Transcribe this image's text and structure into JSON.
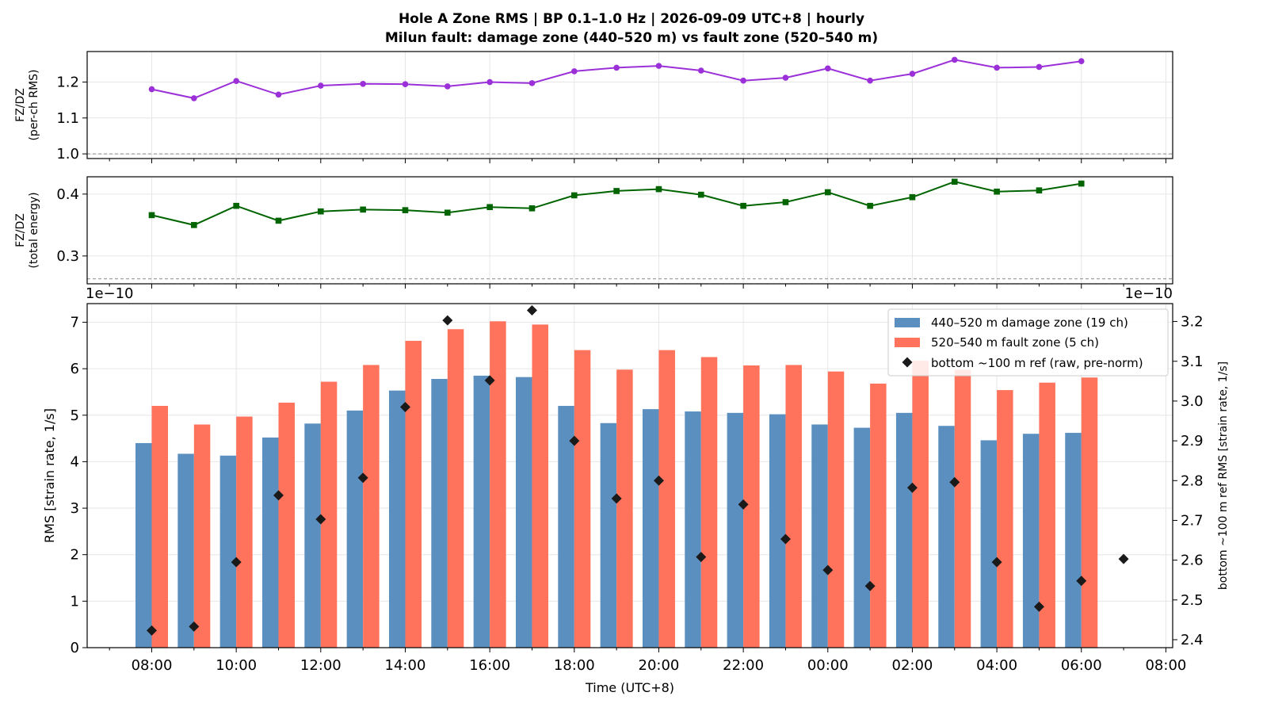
{
  "title_line1": "Hole A Zone RMS  |  BP 0.1–1.0 Hz  |  2026-09-09 UTC+8  |  hourly",
  "title_line2": "Milun fault: damage zone (440–520 m) vs fault zone (520–540 m)",
  "colors": {
    "ratio_rms": "#9b30d9",
    "ratio_energy": "#006400",
    "damage_zone": "#5b8fc0",
    "fault_zone": "#ff735c",
    "ref": "#1a1a1a",
    "grid": "#e6e6e6"
  },
  "x_tick_labels": [
    "08:00",
    "10:00",
    "12:00",
    "14:00",
    "16:00",
    "18:00",
    "20:00",
    "22:00",
    "00:00",
    "02:00",
    "04:00",
    "06:00",
    "08:00"
  ],
  "xlabel": "Time (UTC+8)",
  "chart_data": [
    {
      "type": "line",
      "ylabel": [
        "FZ/DZ",
        "(per-ch RMS)"
      ],
      "ylim": [
        0.987,
        1.285
      ],
      "yticks": [
        "1.0",
        "1.1",
        "1.2"
      ],
      "reference_line": 1.0,
      "grid": true,
      "x": [
        "08:00",
        "09:00",
        "10:00",
        "11:00",
        "12:00",
        "13:00",
        "14:00",
        "15:00",
        "16:00",
        "17:00",
        "18:00",
        "19:00",
        "20:00",
        "21:00",
        "22:00",
        "23:00",
        "00:00",
        "01:00",
        "02:00",
        "03:00",
        "04:00",
        "05:00",
        "06:00"
      ],
      "series": [
        {
          "values": [
            1.18,
            1.155,
            1.203,
            1.165,
            1.19,
            1.195,
            1.194,
            1.188,
            1.2,
            1.197,
            1.23,
            1.24,
            1.245,
            1.232,
            1.204,
            1.212,
            1.238,
            1.204,
            1.223,
            1.262,
            1.24,
            1.242,
            1.258
          ]
        }
      ]
    },
    {
      "type": "line",
      "ylabel": [
        "FZ/DZ",
        "(total energy)"
      ],
      "ylim": [
        0.255,
        0.428
      ],
      "yticks": [
        "0.3",
        "0.4"
      ],
      "reference_line": 0.263,
      "grid": true,
      "x": [
        "08:00",
        "09:00",
        "10:00",
        "11:00",
        "12:00",
        "13:00",
        "14:00",
        "15:00",
        "16:00",
        "17:00",
        "18:00",
        "19:00",
        "20:00",
        "21:00",
        "22:00",
        "23:00",
        "00:00",
        "01:00",
        "02:00",
        "03:00",
        "04:00",
        "05:00",
        "06:00"
      ],
      "series": [
        {
          "values": [
            0.366,
            0.35,
            0.381,
            0.357,
            0.372,
            0.375,
            0.374,
            0.37,
            0.379,
            0.377,
            0.398,
            0.405,
            0.408,
            0.399,
            0.381,
            0.387,
            0.403,
            0.381,
            0.395,
            0.42,
            0.404,
            0.406,
            0.417
          ]
        }
      ]
    },
    {
      "type": "bar",
      "ylabel": "RMS  [strain rate, 1/s]",
      "y_offset_label": "1e−10",
      "ylim": [
        0,
        7.4
      ],
      "yticks": [
        "0",
        "1",
        "2",
        "3",
        "4",
        "5",
        "6",
        "7"
      ],
      "y2label": "bottom ~100 m ref RMS  [strain rate, 1/s]",
      "y2_offset_label": "1e−10",
      "y2lim": [
        2.38,
        3.245
      ],
      "y2ticks": [
        "2.4",
        "2.5",
        "2.6",
        "2.7",
        "2.8",
        "2.9",
        "3.0",
        "3.1",
        "3.2"
      ],
      "grid": true,
      "legend_position": "top-right",
      "categories": [
        "08:00",
        "09:00",
        "10:00",
        "11:00",
        "12:00",
        "13:00",
        "14:00",
        "15:00",
        "16:00",
        "17:00",
        "18:00",
        "19:00",
        "20:00",
        "21:00",
        "22:00",
        "23:00",
        "00:00",
        "01:00",
        "02:00",
        "03:00",
        "04:00",
        "05:00",
        "06:00"
      ],
      "series": [
        {
          "name": "440–520 m  damage zone (19 ch)",
          "values": [
            4.4,
            4.17,
            4.13,
            4.52,
            4.82,
            5.1,
            5.53,
            5.78,
            5.85,
            5.82,
            5.2,
            4.83,
            5.13,
            5.08,
            5.05,
            5.02,
            4.8,
            4.73,
            5.05,
            4.77,
            4.46,
            4.6,
            4.62
          ]
        },
        {
          "name": "520–540 m  fault zone (5 ch)",
          "values": [
            5.2,
            4.8,
            4.97,
            5.27,
            5.72,
            6.08,
            6.6,
            6.85,
            7.02,
            6.95,
            6.4,
            5.98,
            6.4,
            6.25,
            6.07,
            6.08,
            5.94,
            5.68,
            6.17,
            5.98,
            5.54,
            5.7,
            5.81
          ]
        },
        {
          "name": "bottom ~100 m ref (raw, pre-norm)",
          "axis": "right",
          "x": [
            "08:00",
            "09:00",
            "10:00",
            "11:00",
            "12:00",
            "13:00",
            "14:00",
            "15:00",
            "16:00",
            "17:00",
            "18:00",
            "19:00",
            "20:00",
            "21:00",
            "22:00",
            "23:00",
            "00:00",
            "01:00",
            "02:00",
            "03:00",
            "04:00",
            "05:00",
            "06:00",
            "07:00"
          ],
          "values": [
            2.423,
            2.433,
            2.595,
            2.763,
            2.703,
            2.807,
            2.985,
            3.203,
            3.052,
            3.228,
            2.9,
            2.755,
            2.8,
            2.608,
            2.74,
            2.653,
            2.575,
            2.535,
            2.782,
            2.796,
            2.595,
            2.483,
            2.548,
            2.603
          ]
        }
      ]
    }
  ]
}
